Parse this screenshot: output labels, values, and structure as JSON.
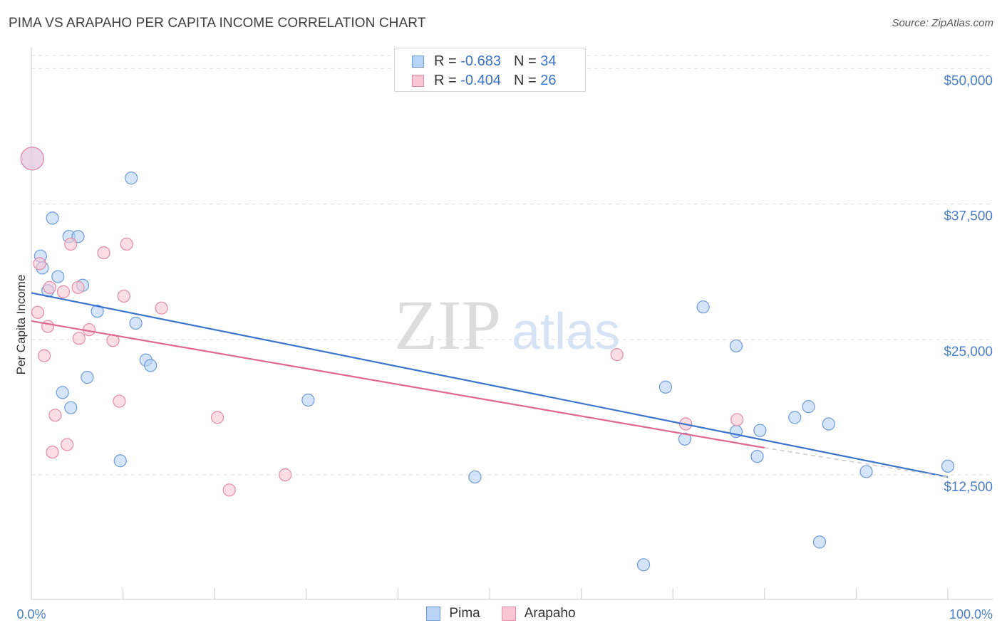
{
  "title": "PIMA VS ARAPAHO PER CAPITA INCOME CORRELATION CHART",
  "source": "Source: ZipAtlas.com",
  "watermark": {
    "zip": "ZIP",
    "atlas": "atlas"
  },
  "colors": {
    "pima_fill": "#b7d3f5",
    "pima_stroke": "#6d9bd8",
    "pima_line": "#3a74cc",
    "arapaho_fill": "#f8c6d4",
    "arapaho_stroke": "#e48aa6",
    "arapaho_line": "#e0678f",
    "tick_text": "#4a7fc8",
    "grid": "#dddddd"
  },
  "legend": {
    "rows": [
      {
        "r_label": "R = ",
        "r_value": "-0.683",
        "n_label": "N = ",
        "n_value": "34"
      },
      {
        "r_label": "R = ",
        "r_value": "-0.404",
        "n_label": "N = ",
        "n_value": "26"
      }
    ]
  },
  "chart_data": {
    "type": "scatter",
    "title": "PIMA VS ARAPAHO PER CAPITA INCOME CORRELATION CHART",
    "xlabel": "",
    "ylabel": "Per Capita Income",
    "xlim": [
      0,
      100
    ],
    "ylim": [
      1000,
      52000
    ],
    "x_tick_labels": [
      "0.0%",
      "100.0%"
    ],
    "y_ticks": [
      12500,
      25000,
      37500,
      50000
    ],
    "y_tick_labels": [
      "$12,500",
      "$25,000",
      "$37,500",
      "$50,000"
    ],
    "grid": true,
    "legend_position": "top-center",
    "series": [
      {
        "name": "Pima",
        "points": [
          {
            "x": 0.1,
            "y": 41700,
            "big": true
          },
          {
            "x": 1.0,
            "y": 32700
          },
          {
            "x": 1.2,
            "y": 31600
          },
          {
            "x": 1.8,
            "y": 29500
          },
          {
            "x": 2.3,
            "y": 36200
          },
          {
            "x": 2.9,
            "y": 30800
          },
          {
            "x": 3.4,
            "y": 20100
          },
          {
            "x": 4.1,
            "y": 34500
          },
          {
            "x": 4.3,
            "y": 18700
          },
          {
            "x": 5.1,
            "y": 34500
          },
          {
            "x": 5.6,
            "y": 30000
          },
          {
            "x": 6.1,
            "y": 21500
          },
          {
            "x": 7.2,
            "y": 27600
          },
          {
            "x": 9.7,
            "y": 13800
          },
          {
            "x": 10.9,
            "y": 39900
          },
          {
            "x": 11.4,
            "y": 26500
          },
          {
            "x": 12.5,
            "y": 23100
          },
          {
            "x": 13.0,
            "y": 22600
          },
          {
            "x": 30.2,
            "y": 19400
          },
          {
            "x": 48.4,
            "y": 12300
          },
          {
            "x": 66.8,
            "y": 4200
          },
          {
            "x": 69.2,
            "y": 20600
          },
          {
            "x": 71.3,
            "y": 15800
          },
          {
            "x": 73.3,
            "y": 28000
          },
          {
            "x": 76.9,
            "y": 16500
          },
          {
            "x": 76.9,
            "y": 24400
          },
          {
            "x": 79.2,
            "y": 14200
          },
          {
            "x": 79.5,
            "y": 16600
          },
          {
            "x": 83.3,
            "y": 17800
          },
          {
            "x": 84.8,
            "y": 18800
          },
          {
            "x": 86.0,
            "y": 6300
          },
          {
            "x": 87.0,
            "y": 17200
          },
          {
            "x": 91.1,
            "y": 12800
          },
          {
            "x": 100.0,
            "y": 13300
          }
        ],
        "trend": {
          "x": [
            0,
            100
          ],
          "y": [
            29300,
            12300
          ]
        }
      },
      {
        "name": "Arapaho",
        "points": [
          {
            "x": 0.1,
            "y": 41700,
            "big": true
          },
          {
            "x": 0.7,
            "y": 27500
          },
          {
            "x": 0.9,
            "y": 32000
          },
          {
            "x": 1.4,
            "y": 23500
          },
          {
            "x": 1.8,
            "y": 26200
          },
          {
            "x": 2.0,
            "y": 29800
          },
          {
            "x": 2.3,
            "y": 14600
          },
          {
            "x": 2.6,
            "y": 18000
          },
          {
            "x": 3.5,
            "y": 29400
          },
          {
            "x": 3.9,
            "y": 15300
          },
          {
            "x": 4.3,
            "y": 33800
          },
          {
            "x": 5.1,
            "y": 29800
          },
          {
            "x": 5.2,
            "y": 25100
          },
          {
            "x": 6.3,
            "y": 25900
          },
          {
            "x": 7.9,
            "y": 33000
          },
          {
            "x": 8.9,
            "y": 24900
          },
          {
            "x": 9.6,
            "y": 19300
          },
          {
            "x": 10.1,
            "y": 29000
          },
          {
            "x": 10.4,
            "y": 33800
          },
          {
            "x": 14.2,
            "y": 27900
          },
          {
            "x": 20.3,
            "y": 17800
          },
          {
            "x": 21.6,
            "y": 11100
          },
          {
            "x": 27.7,
            "y": 12500
          },
          {
            "x": 63.9,
            "y": 23600
          },
          {
            "x": 71.4,
            "y": 17200
          },
          {
            "x": 77.0,
            "y": 17600
          }
        ],
        "trend": {
          "x": [
            0,
            80
          ],
          "y": [
            26700,
            15000
          ]
        },
        "trend_dashed_extension": {
          "x": [
            80,
            100
          ],
          "y": [
            15000,
            12300
          ]
        }
      }
    ]
  }
}
